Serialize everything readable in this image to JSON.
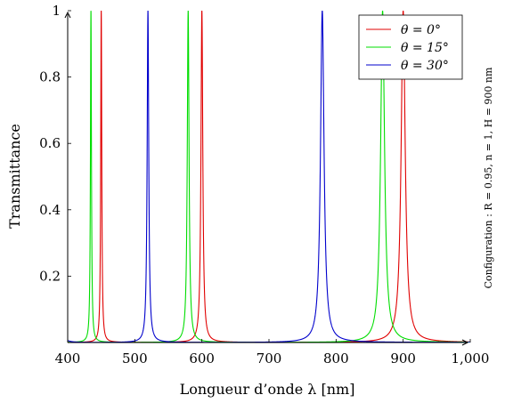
{
  "chart_data": {
    "type": "line",
    "xlabel": "Longueur d’onde λ [nm]",
    "ylabel": "Transmittance",
    "xlim": [
      400,
      1000
    ],
    "ylim": [
      0,
      1
    ],
    "x_ticks": [
      400,
      500,
      600,
      700,
      800,
      900,
      1000
    ],
    "x_tick_labels": [
      "400",
      "500",
      "600",
      "700",
      "800",
      "900",
      "1,000"
    ],
    "y_ticks": [
      0.2,
      0.4,
      0.6,
      0.8,
      1
    ],
    "y_tick_labels": [
      "0.2",
      "0.4",
      "0.6",
      "0.8",
      "1"
    ],
    "grid": false,
    "legend_position": "top-right",
    "annotation": "Configuration : R = 0.95, n = 1, H = 900 nm",
    "model": {
      "R": 0.95,
      "n": 1,
      "H_nm": 900
    },
    "series": [
      {
        "name": "θ = 0°",
        "color": "#e00000",
        "angle_deg": 0,
        "peaks_nm": [
          450,
          600,
          900
        ],
        "peak_value": 1
      },
      {
        "name": "θ = 15°",
        "color": "#00dd00",
        "angle_deg": 15,
        "peaks_nm": [
          435,
          580,
          869
        ],
        "peak_value": 1
      },
      {
        "name": "θ = 30°",
        "color": "#0000cc",
        "angle_deg": 30,
        "peaks_nm": [
          520,
          779
        ],
        "peak_value": 1
      }
    ]
  }
}
